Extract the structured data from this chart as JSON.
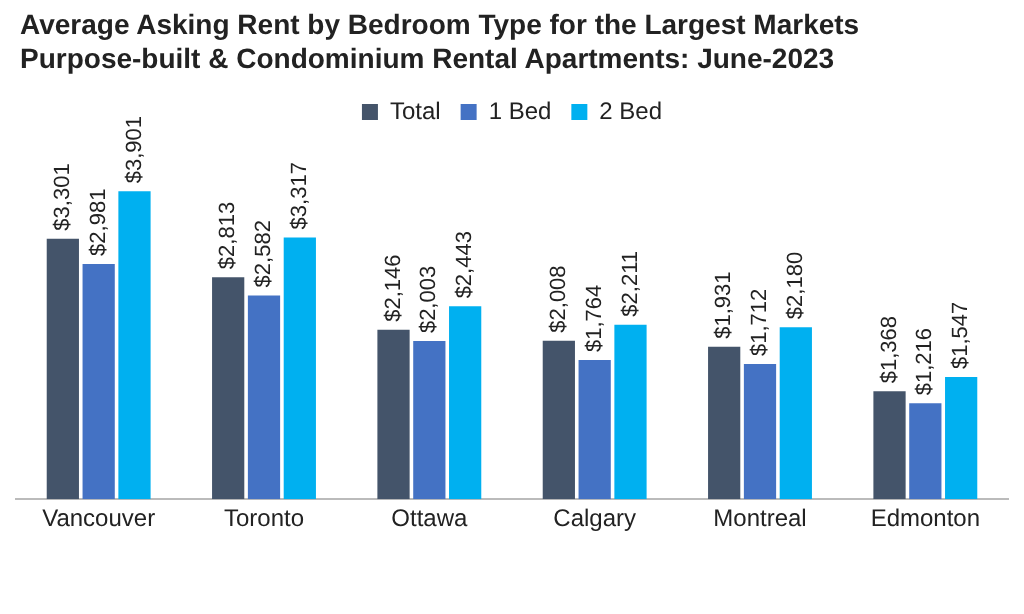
{
  "chart_data": {
    "type": "bar",
    "title": "Average Asking Rent by Bedroom Type for the Largest Markets",
    "subtitle": "Purpose-built & Condominium Rental Apartments: June-2023",
    "categories": [
      "Vancouver",
      "Toronto",
      "Ottawa",
      "Calgary",
      "Montreal",
      "Edmonton"
    ],
    "series": [
      {
        "name": "Total",
        "color": "#44546a",
        "values": [
          3301,
          2813,
          2146,
          2008,
          1931,
          1368
        ],
        "value_labels": [
          "$3,301",
          "$2,813",
          "$2,146",
          "$2,008",
          "$1,931",
          "$1,368"
        ]
      },
      {
        "name": "1 Bed",
        "color": "#4472c4",
        "values": [
          2981,
          2582,
          2003,
          1764,
          1712,
          1216
        ],
        "value_labels": [
          "$2,981",
          "$2,582",
          "$2,003",
          "$1,764",
          "$1,712",
          "$1,216"
        ]
      },
      {
        "name": "2 Bed",
        "color": "#00b0f0",
        "values": [
          3901,
          3317,
          2443,
          2211,
          2180,
          1547
        ],
        "value_labels": [
          "$3,901",
          "$3,317",
          "$2,443",
          "$2,211",
          "$2,180",
          "$1,547"
        ]
      }
    ],
    "legend": "top right",
    "grid": false
  }
}
